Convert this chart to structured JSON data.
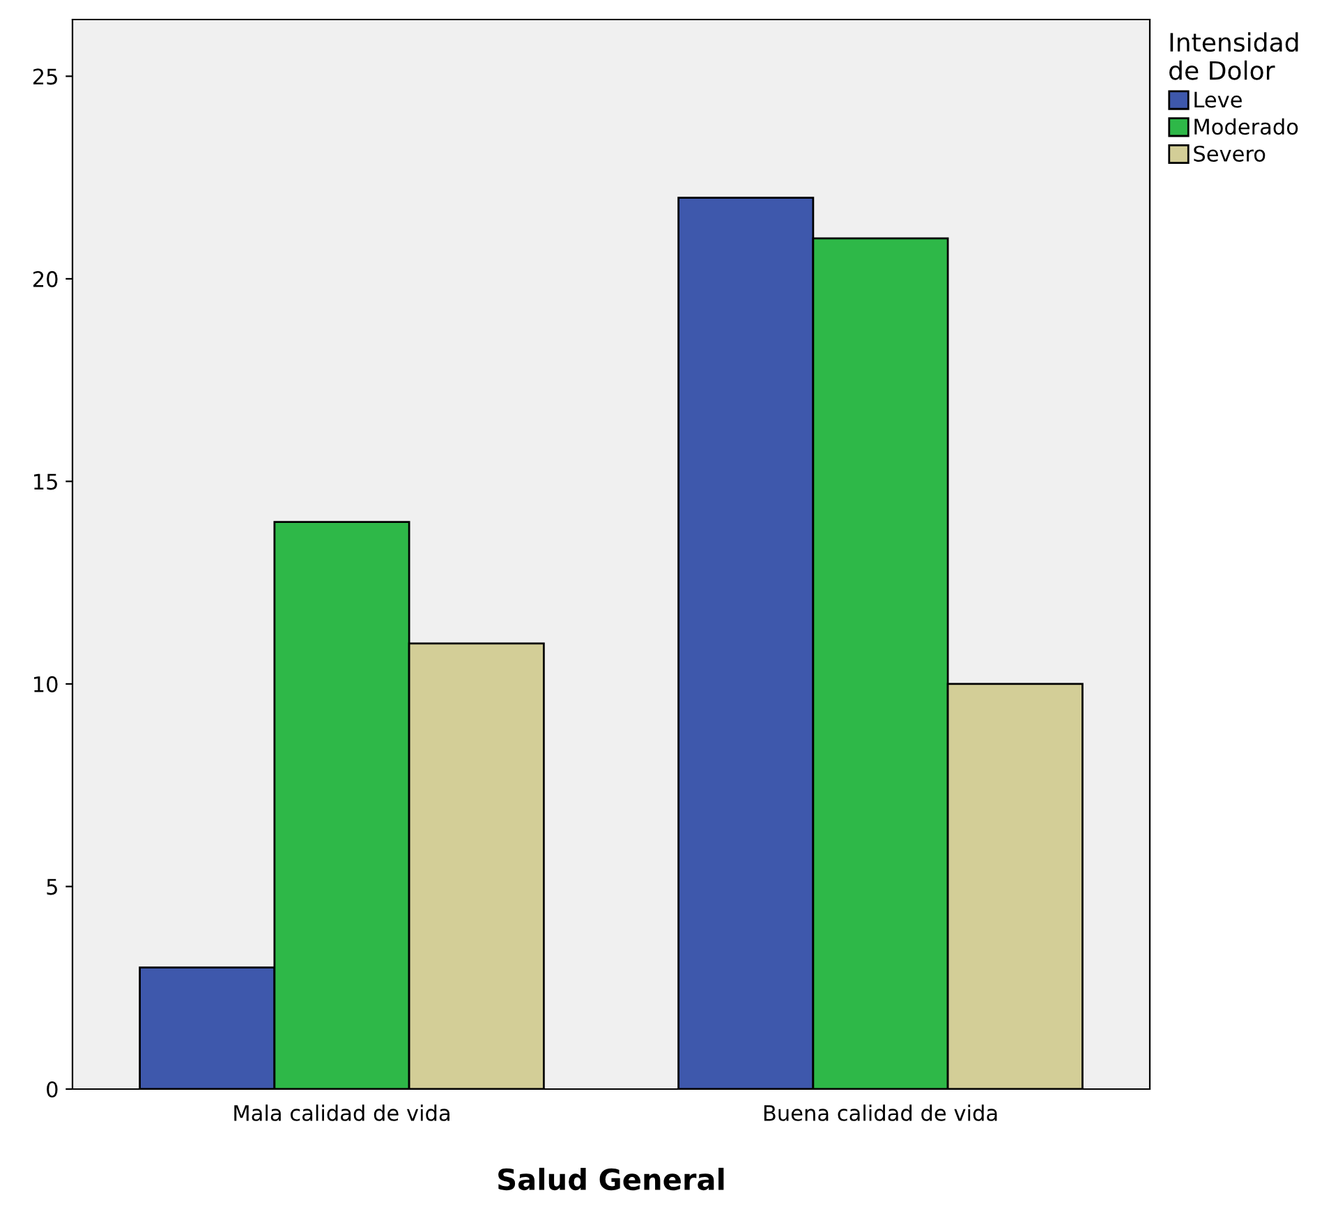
{
  "chart_data": {
    "type": "bar",
    "xlabel": "Salud General",
    "legend_title": "Intensidad\nde Dolor",
    "categories": [
      "Mala calidad de vida",
      "Buena calidad de vida"
    ],
    "series": [
      {
        "name": "Leve",
        "color": "#3e58ac",
        "values": [
          3,
          22
        ]
      },
      {
        "name": "Moderado",
        "color": "#2eb848",
        "values": [
          14,
          21
        ]
      },
      {
        "name": "Severo",
        "color": "#d3ce97",
        "values": [
          11,
          10
        ]
      }
    ],
    "ylim": [
      0,
      26.4
    ],
    "yticks": [
      0,
      5,
      10,
      15,
      20,
      25
    ],
    "grid": false,
    "legend": "top right"
  }
}
